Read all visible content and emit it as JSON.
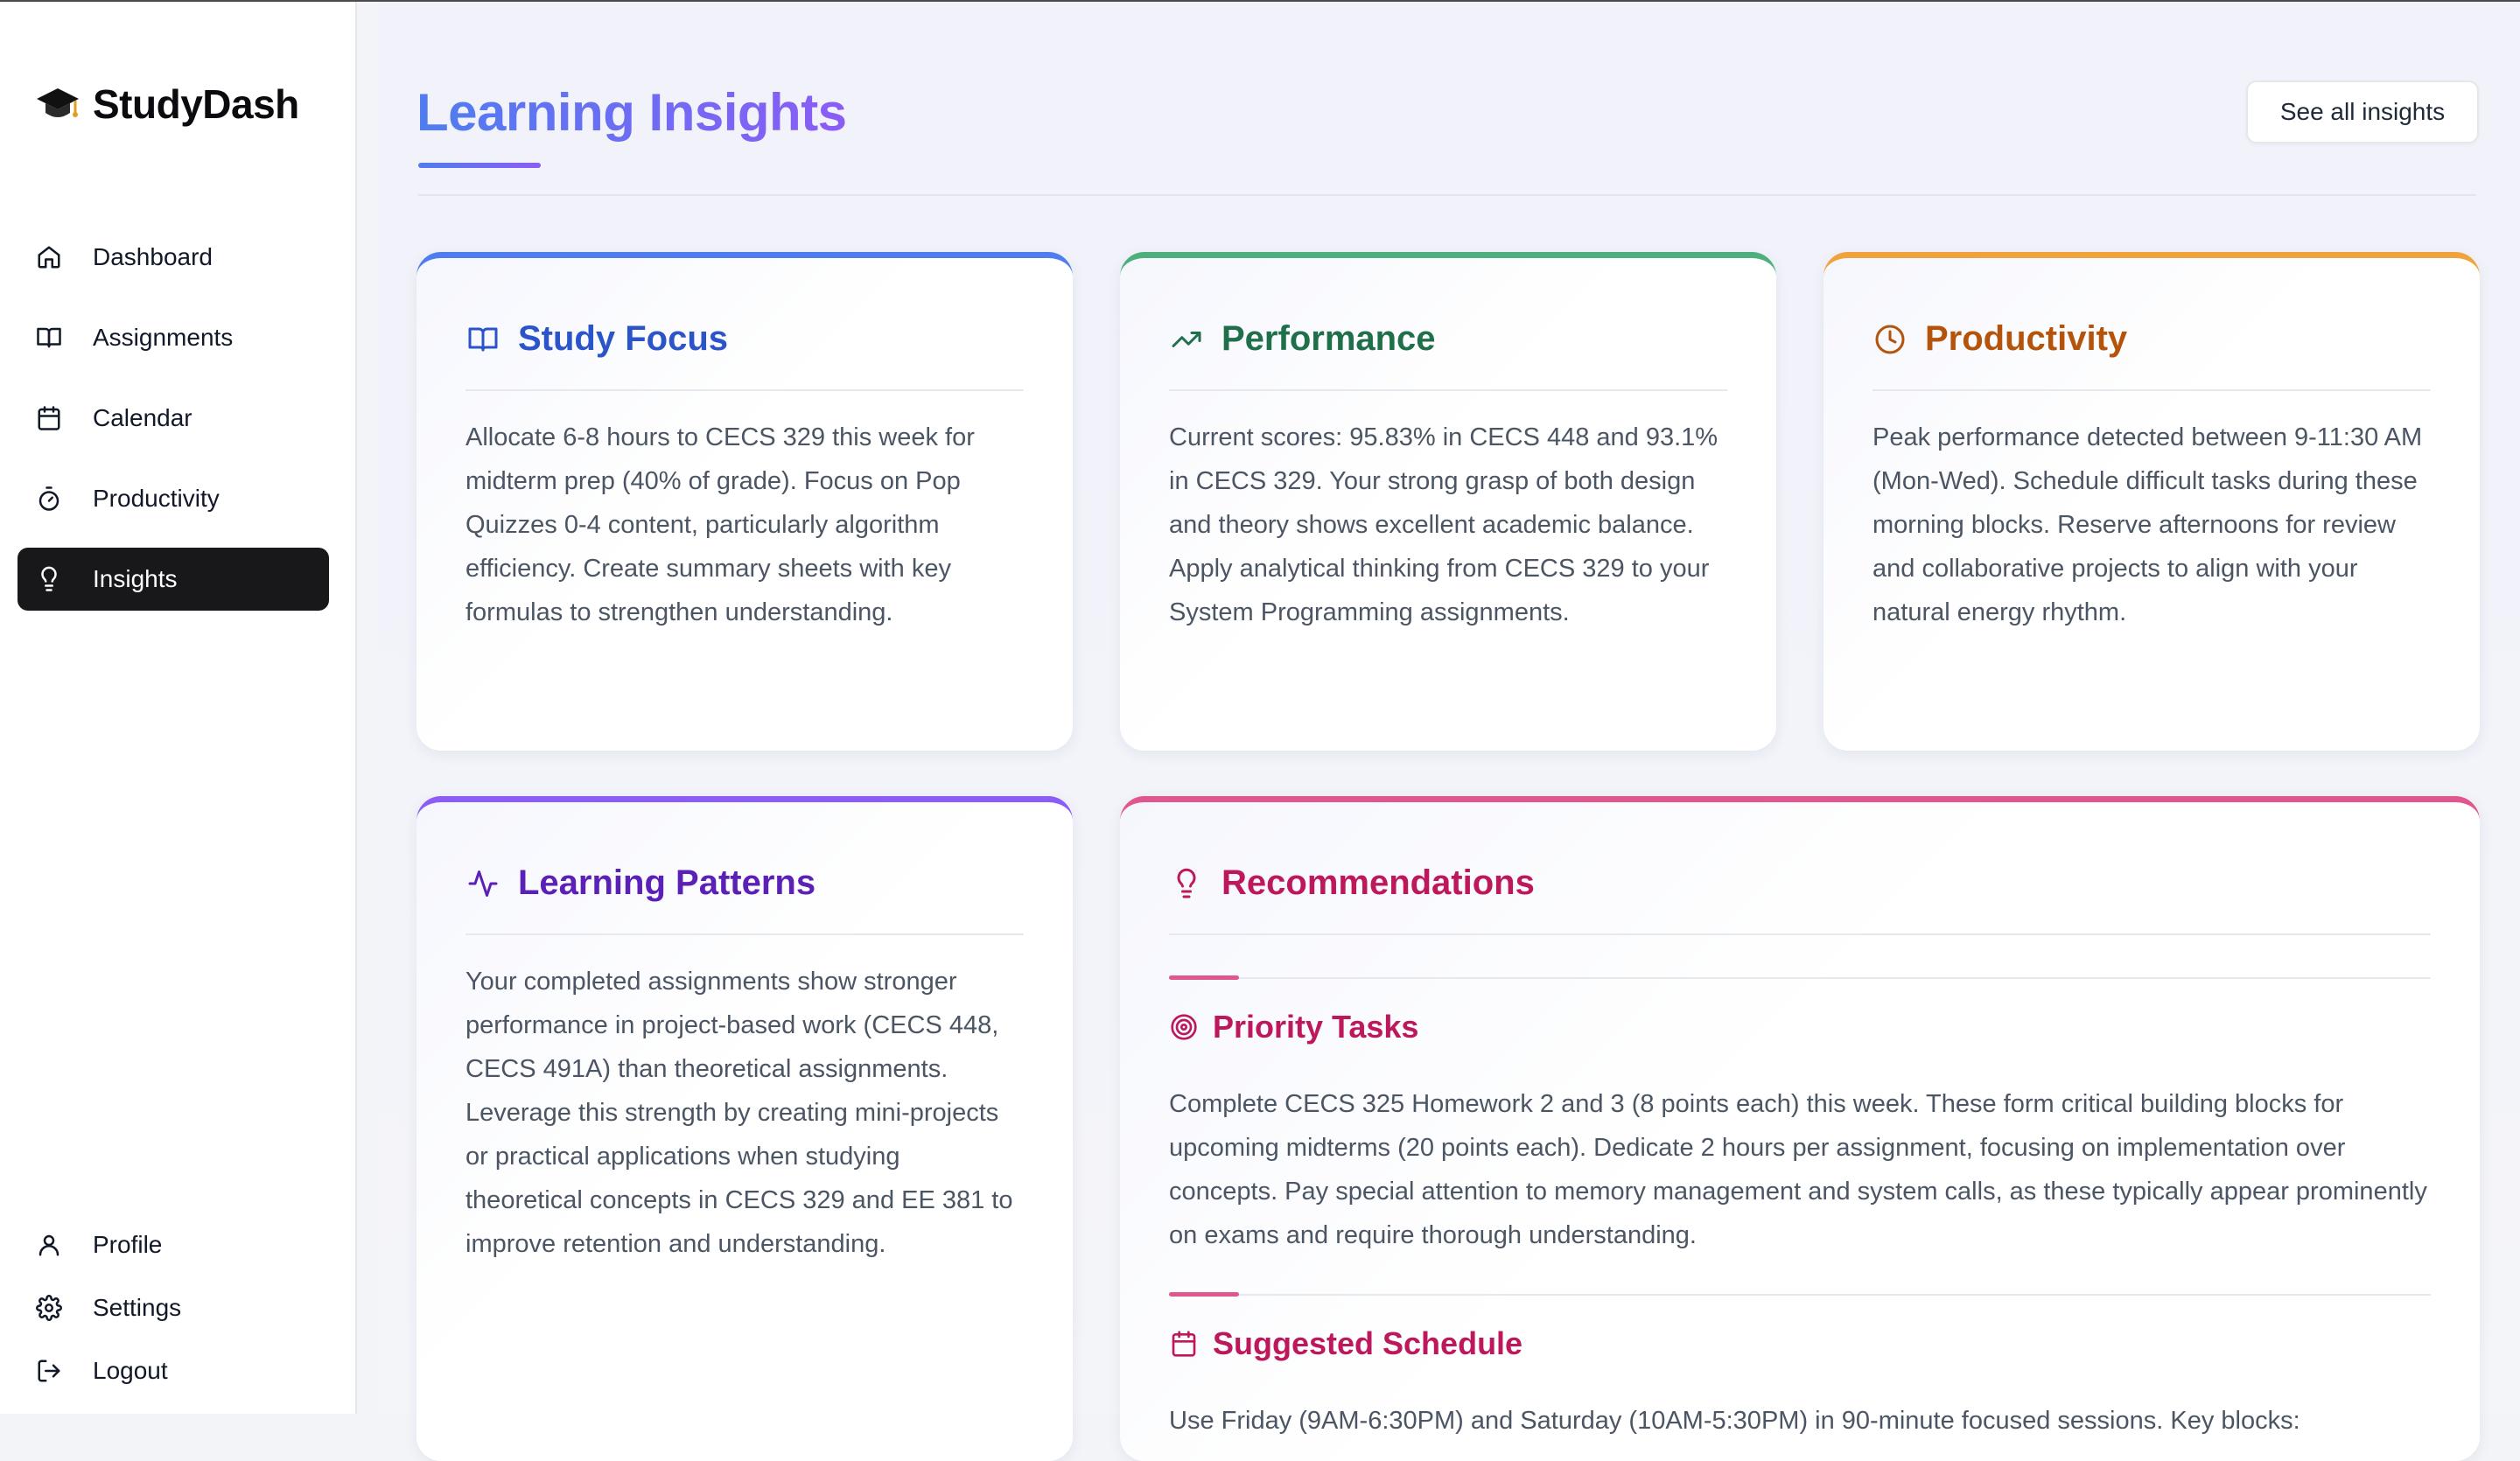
{
  "brand": {
    "name": "StudyDash",
    "icon": "graduation-cap-icon"
  },
  "nav": {
    "items": [
      {
        "label": "Dashboard",
        "icon": "home-icon"
      },
      {
        "label": "Assignments",
        "icon": "book-open-icon"
      },
      {
        "label": "Calendar",
        "icon": "calendar-icon"
      },
      {
        "label": "Productivity",
        "icon": "timer-icon"
      },
      {
        "label": "Insights",
        "icon": "lightbulb-icon",
        "active": true
      }
    ],
    "bottom": [
      {
        "label": "Profile",
        "icon": "user-icon"
      },
      {
        "label": "Settings",
        "icon": "gear-icon"
      },
      {
        "label": "Logout",
        "icon": "logout-icon"
      }
    ]
  },
  "header": {
    "title": "Learning Insights",
    "see_all_label": "See all insights"
  },
  "cards": {
    "study_focus": {
      "title": "Study Focus",
      "body": "Allocate 6-8 hours to CECS 329 this week for midterm prep (40% of grade). Focus on Pop Quizzes 0-4 content, particularly algorithm efficiency. Create summary sheets with key formulas to strengthen understanding.",
      "accent": "#4f7df0"
    },
    "performance": {
      "title": "Performance",
      "body": "Current scores: 95.83% in CECS 448 and 93.1% in CECS 329. Your strong grasp of both design and theory shows excellent academic balance. Apply analytical thinking from CECS 329 to your System Programming assignments.",
      "accent": "#4caf7d"
    },
    "productivity": {
      "title": "Productivity",
      "body": "Peak performance detected between 9-11:30 AM (Mon-Wed). Schedule difficult tasks during these morning blocks. Reserve afternoons for review and collaborative projects to align with your natural energy rhythm.",
      "accent": "#f0a33a"
    },
    "learning_patterns": {
      "title": "Learning Patterns",
      "body": "Your completed assignments show stronger performance in project-based work (CECS 448, CECS 491A) than theoretical assignments. Leverage this strength by creating mini-projects or practical applications when studying theoretical concepts in CECS 329 and EE 381 to improve retention and understanding.",
      "accent": "#8b5cf6"
    },
    "recommendations": {
      "title": "Recommendations",
      "accent": "#e0568f",
      "priority": {
        "title": "Priority Tasks",
        "body": "Complete CECS 325 Homework 2 and 3 (8 points each) this week. These form critical building blocks for upcoming midterms (20 points each). Dedicate 2 hours per assignment, focusing on implementation over concepts. Pay special attention to memory management and system calls, as these typically appear prominently on exams and require thorough understanding."
      },
      "schedule": {
        "title": "Suggested Schedule",
        "body": "Use Friday (9AM-6:30PM) and Saturday (10AM-5:30PM) in 90-minute focused sessions. Key blocks:"
      }
    }
  }
}
